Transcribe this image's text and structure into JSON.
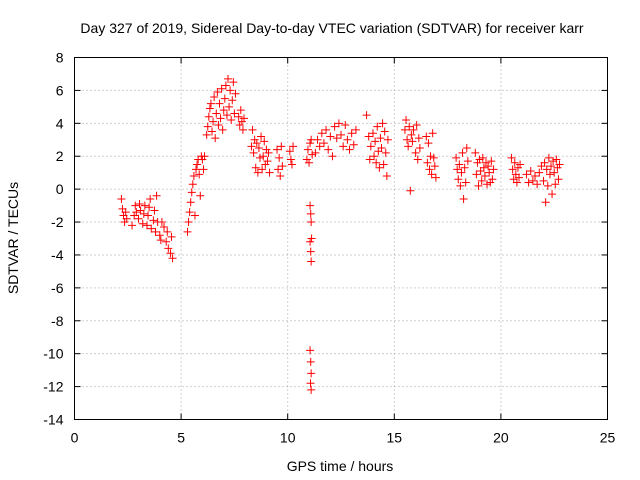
{
  "chart_data": {
    "type": "scatter",
    "title": "Day 327 of 2019, Sidereal Day-to-day VTEC variation (SDTVAR) for receiver karr",
    "xlabel": "GPS time / hours",
    "ylabel": "SDTVAR / TECUs",
    "xlim": [
      0,
      25
    ],
    "ylim": [
      -14,
      8
    ],
    "xticks": [
      0,
      5,
      10,
      15,
      20,
      25
    ],
    "yticks": [
      -14,
      -12,
      -10,
      -8,
      -6,
      -4,
      -2,
      0,
      2,
      4,
      6,
      8
    ],
    "grid": true,
    "marker": "+",
    "marker_color": "#ff0000",
    "series": [
      {
        "name": "SDTVAR",
        "points": [
          [
            2.2,
            -0.6
          ],
          [
            2.25,
            -1.2
          ],
          [
            2.3,
            -1.6
          ],
          [
            2.35,
            -2.0
          ],
          [
            2.4,
            -1.4
          ],
          [
            2.45,
            -1.8
          ],
          [
            2.7,
            -2.2
          ],
          [
            2.8,
            -1.6
          ],
          [
            2.85,
            -1.0
          ],
          [
            2.9,
            -1.4
          ],
          [
            3.0,
            -1.8
          ],
          [
            3.05,
            -0.9
          ],
          [
            3.1,
            -1.3
          ],
          [
            3.2,
            -2.1
          ],
          [
            3.25,
            -1.5
          ],
          [
            3.3,
            -1.0
          ],
          [
            3.4,
            -2.2
          ],
          [
            3.45,
            -1.6
          ],
          [
            3.5,
            -1.1
          ],
          [
            3.55,
            -0.6
          ],
          [
            3.6,
            -2.4
          ],
          [
            3.7,
            -1.9
          ],
          [
            3.75,
            -1.3
          ],
          [
            3.8,
            -2.6
          ],
          [
            3.85,
            -0.4
          ],
          [
            3.9,
            -2.0
          ],
          [
            4.0,
            -2.8
          ],
          [
            4.05,
            -3.1
          ],
          [
            4.1,
            -2.0
          ],
          [
            4.2,
            -2.3
          ],
          [
            4.3,
            -3.2
          ],
          [
            4.35,
            -2.6
          ],
          [
            4.4,
            -3.6
          ],
          [
            4.5,
            -3.9
          ],
          [
            4.55,
            -2.9
          ],
          [
            4.6,
            -4.2
          ],
          [
            5.3,
            -2.6
          ],
          [
            5.35,
            -2.0
          ],
          [
            5.4,
            -1.4
          ],
          [
            5.45,
            -0.8
          ],
          [
            5.5,
            -0.2
          ],
          [
            5.55,
            0.3
          ],
          [
            5.6,
            0.8
          ],
          [
            5.65,
            -1.6
          ],
          [
            5.7,
            1.2
          ],
          [
            5.75,
            1.5
          ],
          [
            5.8,
            1.8
          ],
          [
            5.85,
            0.9
          ],
          [
            5.9,
            -0.4
          ],
          [
            5.95,
            2.0
          ],
          [
            6.0,
            1.8
          ],
          [
            6.05,
            1.2
          ],
          [
            6.1,
            2.0
          ],
          [
            6.2,
            3.3
          ],
          [
            6.25,
            3.8
          ],
          [
            6.3,
            4.4
          ],
          [
            6.35,
            4.9
          ],
          [
            6.4,
            5.2
          ],
          [
            6.45,
            3.5
          ],
          [
            6.5,
            4.1
          ],
          [
            6.55,
            5.6
          ],
          [
            6.6,
            3.1
          ],
          [
            6.65,
            4.6
          ],
          [
            6.7,
            5.9
          ],
          [
            6.75,
            3.9
          ],
          [
            6.8,
            5.2
          ],
          [
            6.85,
            4.3
          ],
          [
            6.9,
            6.1
          ],
          [
            6.95,
            3.6
          ],
          [
            7.0,
            4.8
          ],
          [
            7.05,
            5.5
          ],
          [
            7.1,
            6.3
          ],
          [
            7.15,
            4.5
          ],
          [
            7.2,
            6.7
          ],
          [
            7.25,
            5.0
          ],
          [
            7.3,
            6.0
          ],
          [
            7.35,
            4.2
          ],
          [
            7.4,
            5.4
          ],
          [
            7.45,
            6.5
          ],
          [
            7.5,
            4.6
          ],
          [
            7.55,
            5.8
          ],
          [
            7.7,
            4.4
          ],
          [
            7.75,
            3.9
          ],
          [
            7.8,
            4.8
          ],
          [
            7.85,
            4.1
          ],
          [
            7.9,
            3.6
          ],
          [
            7.95,
            4.3
          ],
          [
            8.3,
            2.6
          ],
          [
            8.35,
            3.6
          ],
          [
            8.4,
            2.2
          ],
          [
            8.45,
            3.0
          ],
          [
            8.5,
            1.3
          ],
          [
            8.55,
            2.8
          ],
          [
            8.6,
            1.0
          ],
          [
            8.65,
            2.5
          ],
          [
            8.7,
            1.9
          ],
          [
            8.75,
            3.2
          ],
          [
            8.8,
            1.2
          ],
          [
            8.85,
            2.0
          ],
          [
            8.9,
            2.9
          ],
          [
            8.95,
            1.5
          ],
          [
            9.0,
            2.4
          ],
          [
            9.05,
            1.7
          ],
          [
            9.1,
            2.2
          ],
          [
            9.15,
            1.0
          ],
          [
            9.5,
            2.4
          ],
          [
            9.55,
            1.2
          ],
          [
            9.6,
            1.9
          ],
          [
            9.65,
            0.8
          ],
          [
            9.7,
            2.6
          ],
          [
            9.75,
            1.4
          ],
          [
            10.1,
            2.3
          ],
          [
            10.15,
            1.8
          ],
          [
            10.2,
            1.5
          ],
          [
            10.25,
            2.6
          ],
          [
            10.9,
            1.8
          ],
          [
            10.95,
            2.4
          ],
          [
            11.0,
            1.6
          ],
          [
            11.05,
            2.8
          ],
          [
            11.1,
            3.0
          ],
          [
            11.15,
            2.1
          ],
          [
            11.05,
            -1.0
          ],
          [
            11.08,
            -1.5
          ],
          [
            11.1,
            -2.0
          ],
          [
            11.05,
            -3.2
          ],
          [
            11.08,
            -3.8
          ],
          [
            11.1,
            -4.4
          ],
          [
            11.12,
            -3.0
          ],
          [
            11.05,
            -9.8
          ],
          [
            11.08,
            -10.5
          ],
          [
            11.1,
            -11.2
          ],
          [
            11.07,
            -11.8
          ],
          [
            11.1,
            -12.2
          ],
          [
            11.3,
            2.2
          ],
          [
            11.4,
            3.0
          ],
          [
            11.5,
            2.6
          ],
          [
            11.6,
            3.4
          ],
          [
            11.7,
            2.8
          ],
          [
            11.8,
            3.6
          ],
          [
            11.9,
            2.4
          ],
          [
            12.0,
            3.2
          ],
          [
            12.1,
            2.0
          ],
          [
            12.2,
            3.8
          ],
          [
            12.3,
            3.1
          ],
          [
            12.4,
            4.0
          ],
          [
            12.5,
            3.3
          ],
          [
            12.6,
            2.6
          ],
          [
            12.7,
            3.9
          ],
          [
            12.8,
            3.0
          ],
          [
            12.9,
            2.4
          ],
          [
            13.0,
            3.4
          ],
          [
            13.1,
            2.7
          ],
          [
            13.2,
            3.6
          ],
          [
            13.7,
            4.5
          ],
          [
            13.8,
            3.2
          ],
          [
            13.85,
            1.8
          ],
          [
            13.9,
            2.6
          ],
          [
            14.0,
            3.4
          ],
          [
            14.05,
            2.0
          ],
          [
            14.1,
            2.9
          ],
          [
            14.15,
            1.6
          ],
          [
            14.2,
            3.8
          ],
          [
            14.25,
            2.3
          ],
          [
            14.3,
            1.3
          ],
          [
            14.35,
            3.1
          ],
          [
            14.4,
            2.5
          ],
          [
            14.45,
            4.0
          ],
          [
            14.5,
            1.5
          ],
          [
            14.55,
            3.5
          ],
          [
            14.6,
            2.2
          ],
          [
            14.65,
            0.8
          ],
          [
            14.7,
            3.0
          ],
          [
            15.5,
            3.6
          ],
          [
            15.55,
            4.2
          ],
          [
            15.6,
            3.0
          ],
          [
            15.65,
            2.6
          ],
          [
            15.7,
            3.8
          ],
          [
            15.75,
            -0.1
          ],
          [
            15.8,
            3.3
          ],
          [
            15.85,
            2.9
          ],
          [
            15.9,
            3.6
          ],
          [
            16.0,
            2.2
          ],
          [
            16.05,
            3.9
          ],
          [
            16.1,
            1.8
          ],
          [
            16.15,
            3.1
          ],
          [
            16.2,
            2.5
          ],
          [
            16.5,
            3.2
          ],
          [
            16.55,
            1.6
          ],
          [
            16.6,
            2.8
          ],
          [
            16.65,
            1.2
          ],
          [
            16.7,
            2.0
          ],
          [
            16.75,
            0.9
          ],
          [
            16.8,
            3.4
          ],
          [
            16.85,
            1.9
          ],
          [
            16.9,
            1.4
          ],
          [
            16.95,
            0.7
          ],
          [
            17.9,
            1.9
          ],
          [
            17.95,
            1.2
          ],
          [
            18.0,
            0.6
          ],
          [
            18.05,
            1.5
          ],
          [
            18.1,
            0.2
          ],
          [
            18.15,
            1.0
          ],
          [
            18.2,
            2.2
          ],
          [
            18.25,
            -0.6
          ],
          [
            18.3,
            1.3
          ],
          [
            18.35,
            0.4
          ],
          [
            18.4,
            2.5
          ],
          [
            18.45,
            1.7
          ],
          [
            18.8,
            2.2
          ],
          [
            18.85,
            0.9
          ],
          [
            18.9,
            1.6
          ],
          [
            18.95,
            0.2
          ],
          [
            19.0,
            1.8
          ],
          [
            19.05,
            1.1
          ],
          [
            19.1,
            0.5
          ],
          [
            19.15,
            1.9
          ],
          [
            19.2,
            1.3
          ],
          [
            19.25,
            0.8
          ],
          [
            19.3,
            1.6
          ],
          [
            19.35,
            0.3
          ],
          [
            19.4,
            1.4
          ],
          [
            19.45,
            1.0
          ],
          [
            19.5,
            0.4
          ],
          [
            19.55,
            1.7
          ],
          [
            19.6,
            0.6
          ],
          [
            19.65,
            1.2
          ],
          [
            20.5,
            1.9
          ],
          [
            20.55,
            1.2
          ],
          [
            20.6,
            0.6
          ],
          [
            20.65,
            1.6
          ],
          [
            20.7,
            0.9
          ],
          [
            20.75,
            0.4
          ],
          [
            20.8,
            1.3
          ],
          [
            20.85,
            0.7
          ],
          [
            20.9,
            1.5
          ],
          [
            21.2,
            0.9
          ],
          [
            21.3,
            0.4
          ],
          [
            21.4,
            1.1
          ],
          [
            21.5,
            0.5
          ],
          [
            21.6,
            0.8
          ],
          [
            21.7,
            0.3
          ],
          [
            21.8,
            1.0
          ],
          [
            21.9,
            1.4
          ],
          [
            22.0,
            0.5
          ],
          [
            22.05,
            1.6
          ],
          [
            22.1,
            -0.8
          ],
          [
            22.15,
            1.2
          ],
          [
            22.2,
            0.2
          ],
          [
            22.25,
            1.9
          ],
          [
            22.3,
            0.9
          ],
          [
            22.35,
            1.4
          ],
          [
            22.4,
            -0.3
          ],
          [
            22.45,
            1.7
          ],
          [
            22.5,
            1.0
          ],
          [
            22.55,
            0.3
          ],
          [
            22.6,
            1.8
          ],
          [
            22.65,
            1.3
          ],
          [
            22.7,
            0.6
          ],
          [
            22.75,
            1.5
          ]
        ]
      }
    ]
  }
}
